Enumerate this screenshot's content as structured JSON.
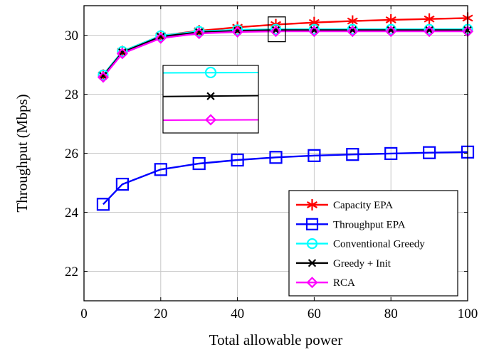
{
  "chart_data": {
    "type": "line",
    "xlabel": "Total allowable power",
    "ylabel": "Throughput (Mbps)",
    "xlim": [
      0,
      100
    ],
    "ylim": [
      21,
      31
    ],
    "xticks": [
      0,
      20,
      40,
      60,
      80,
      100
    ],
    "yticks": [
      22,
      24,
      26,
      28,
      30
    ],
    "grid": true,
    "legend_position": "bottom-right",
    "x": [
      5,
      10,
      20,
      30,
      40,
      50,
      60,
      70,
      80,
      90,
      100
    ],
    "series": [
      {
        "name": "Capacity EPA",
        "color": "#ff0000",
        "marker": "asterisk",
        "values": [
          28.65,
          29.45,
          29.98,
          30.15,
          30.27,
          30.36,
          30.43,
          30.48,
          30.52,
          30.55,
          30.58
        ]
      },
      {
        "name": "Throughput EPA",
        "color": "#0000ff",
        "marker": "square",
        "values": [
          24.27,
          24.95,
          25.45,
          25.65,
          25.77,
          25.86,
          25.92,
          25.96,
          25.99,
          26.02,
          26.04
        ]
      },
      {
        "name": "Conventional Greedy",
        "color": "#00ffff",
        "marker": "circle",
        "values": [
          28.65,
          29.45,
          29.98,
          30.13,
          30.18,
          30.2,
          30.2,
          30.2,
          30.2,
          30.2,
          30.2
        ]
      },
      {
        "name": "Greedy + Init",
        "color": "#000000",
        "marker": "x",
        "values": [
          28.62,
          29.42,
          29.95,
          30.1,
          30.15,
          30.17,
          30.17,
          30.17,
          30.17,
          30.17,
          30.17
        ]
      },
      {
        "name": "RCA",
        "color": "#ff00ff",
        "marker": "diamond",
        "values": [
          28.58,
          29.38,
          29.9,
          30.06,
          30.11,
          30.13,
          30.13,
          30.13,
          30.13,
          30.13,
          30.13
        ]
      }
    ],
    "inset": {
      "zoom_box_x": [
        48,
        52.5
      ],
      "zoom_box_y": [
        29.78,
        30.62
      ],
      "marker_x": 50,
      "series_order": [
        "Conventional Greedy",
        "Greedy + Init",
        "RCA"
      ]
    }
  }
}
